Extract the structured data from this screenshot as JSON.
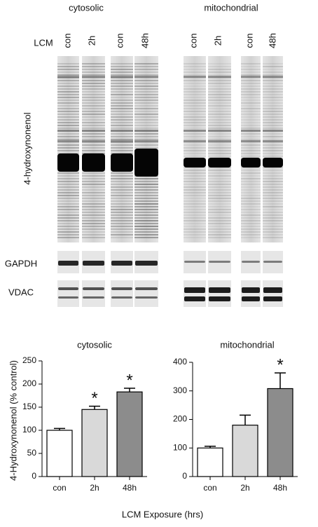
{
  "blot": {
    "fractions": [
      "cytosolic",
      "mitochondrial"
    ],
    "row_label": "LCM",
    "lanes": [
      "con",
      "2h",
      "con",
      "48h",
      "con",
      "2h",
      "con",
      "48h"
    ],
    "panels": [
      "4-hydroxynonenol",
      "GAPDH",
      "VDAC"
    ]
  },
  "shared": {
    "ylabel": "4-Hydroxynonenol (% control)",
    "xlabel": "LCM Exposure (hrs)"
  },
  "chart_data": [
    {
      "type": "bar",
      "title": "cytosolic",
      "categories": [
        "con",
        "2h",
        "48h"
      ],
      "values": [
        100,
        145,
        183
      ],
      "errors": [
        4,
        7,
        8
      ],
      "colors": [
        "#ffffff",
        "#d9d9d9",
        "#8c8c8c"
      ],
      "ylim": [
        0,
        250
      ],
      "yticks": [
        0,
        50,
        100,
        150,
        200,
        250
      ],
      "annotations": [
        {
          "text": "*",
          "x": "2h"
        },
        {
          "text": "*",
          "x": "48h"
        }
      ]
    },
    {
      "type": "bar",
      "title": "mitochondrial",
      "categories": [
        "con",
        "2h",
        "48h"
      ],
      "values": [
        100,
        180,
        308
      ],
      "errors": [
        6,
        35,
        55
      ],
      "colors": [
        "#ffffff",
        "#d9d9d9",
        "#8c8c8c"
      ],
      "ylim": [
        0,
        400
      ],
      "yticks": [
        0,
        100,
        200,
        300,
        400
      ],
      "annotations": [
        {
          "text": "*",
          "x": "48h"
        }
      ]
    }
  ]
}
